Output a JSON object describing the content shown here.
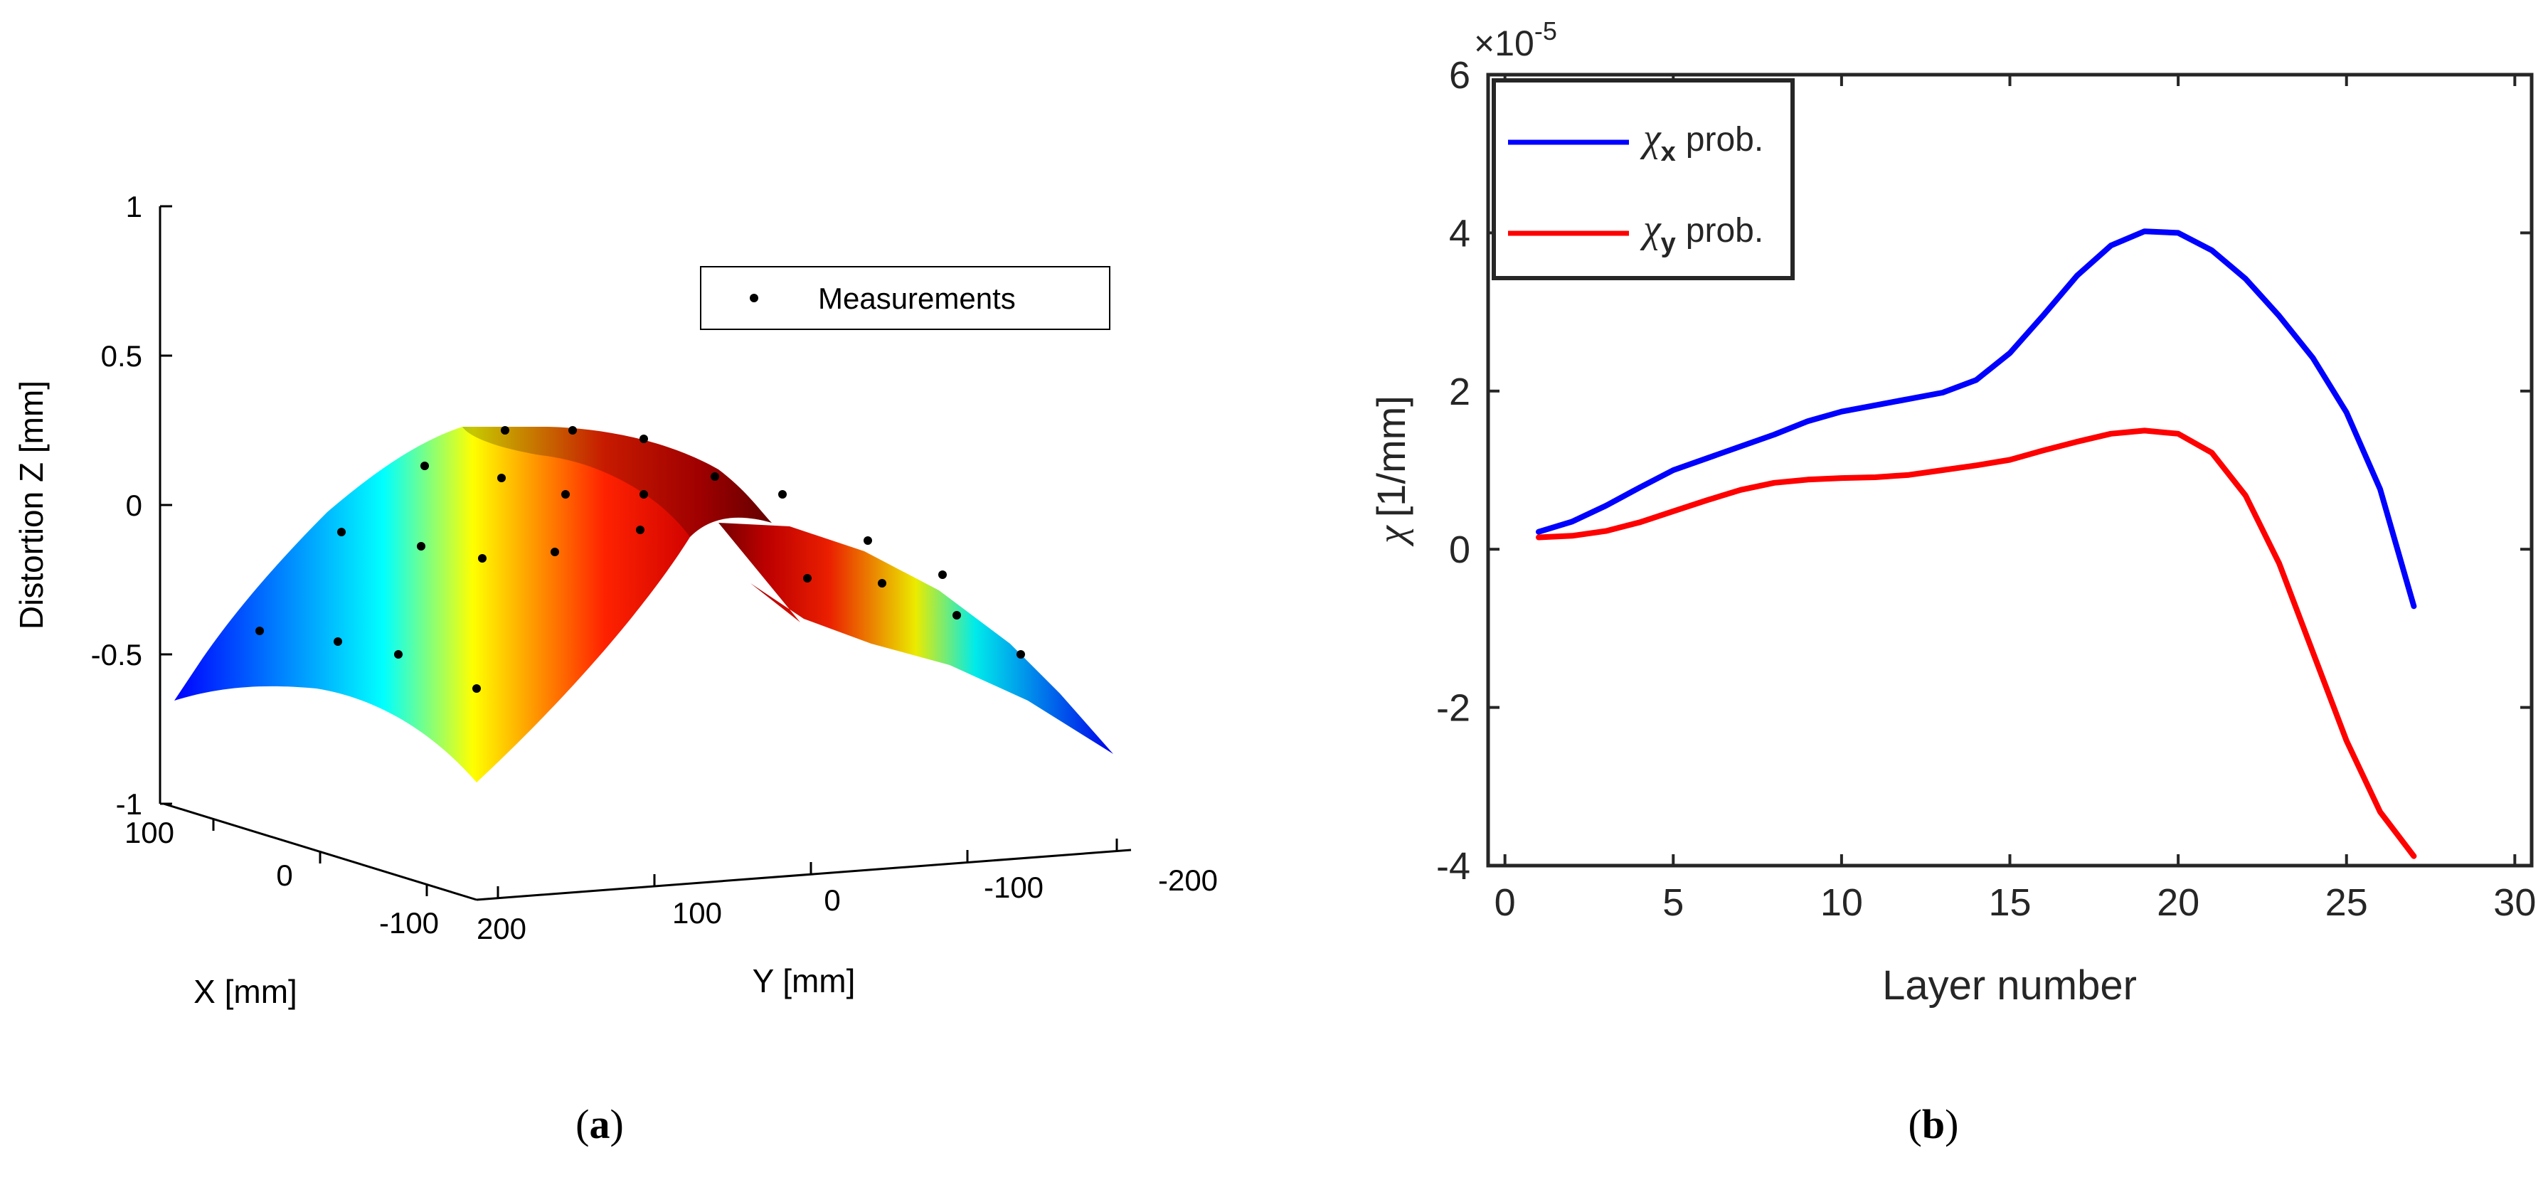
{
  "panel_labels": {
    "a": {
      "open": "(",
      "letter": "a",
      "close": ")"
    },
    "b": {
      "open": "(",
      "letter": "b",
      "close": ")"
    }
  },
  "chart_data": [
    {
      "id": "a",
      "type": "surface3d",
      "title": "",
      "xlabel": "X [mm]",
      "ylabel": "Y [mm]",
      "zlabel": "Distortion Z [mm]",
      "x_ticks": [
        "100",
        "0",
        "-100"
      ],
      "y_ticks": [
        "200",
        "100",
        "0",
        "-100",
        "-200"
      ],
      "z_ticks": [
        "1",
        "0.5",
        "0",
        "-0.5",
        "-1"
      ],
      "xlim": [
        -150,
        150
      ],
      "ylim": [
        -200,
        200
      ],
      "zlim": [
        -1,
        1
      ],
      "legend": {
        "entries": [
          "Measurements"
        ],
        "location": "top-right"
      },
      "surface": {
        "form": "cylindrical bend about the X axis",
        "z_max": 0.25,
        "z_at_y_edges": -0.7,
        "colormap": "jet"
      },
      "colors": {
        "surface_low": "#0000ff",
        "surface_high": "#7f0000",
        "points": "#000000"
      }
    },
    {
      "id": "b",
      "type": "line",
      "title": "",
      "xlabel": "Layer number",
      "ylabel_symbol": "χ",
      "ylabel_unit": "[1/mm]",
      "exponent_label": {
        "prefix": "×10",
        "power": "-5"
      },
      "xlim": [
        -0.5,
        30.5
      ],
      "ylim": [
        -4,
        6
      ],
      "x_ticks": [
        "0",
        "5",
        "10",
        "15",
        "20",
        "25",
        "30"
      ],
      "y_ticks": [
        "6",
        "4",
        "2",
        "0",
        "-2",
        "-4"
      ],
      "legend_location": "top-left",
      "series": [
        {
          "name": "χx prob.",
          "symbol": "χ",
          "subscript": "x",
          "suffix": "prob.",
          "color": "#0000ff",
          "x": [
            1,
            2,
            3,
            4,
            5,
            6,
            7,
            8,
            9,
            10,
            11,
            12,
            13,
            14,
            15,
            16,
            17,
            18,
            19,
            20,
            21,
            22,
            23,
            24,
            25,
            26,
            27
          ],
          "values": [
            0.22,
            0.35,
            0.55,
            0.78,
            1.0,
            1.15,
            1.3,
            1.45,
            1.62,
            1.74,
            1.82,
            1.9,
            1.98,
            2.14,
            2.48,
            2.96,
            3.46,
            3.84,
            4.02,
            4.0,
            3.78,
            3.42,
            2.95,
            2.42,
            1.73,
            0.76,
            -0.72
          ]
        },
        {
          "name": "χy prob.",
          "symbol": "χ",
          "subscript": "y",
          "suffix": "prob.",
          "color": "#ff0000",
          "x": [
            1,
            2,
            3,
            4,
            5,
            6,
            7,
            8,
            9,
            10,
            11,
            12,
            13,
            14,
            15,
            16,
            17,
            18,
            19,
            20,
            21,
            22,
            23,
            24,
            25,
            26,
            27
          ],
          "values": [
            0.15,
            0.17,
            0.23,
            0.34,
            0.48,
            0.62,
            0.75,
            0.84,
            0.88,
            0.9,
            0.91,
            0.94,
            1.0,
            1.06,
            1.13,
            1.25,
            1.36,
            1.46,
            1.5,
            1.46,
            1.22,
            0.68,
            -0.18,
            -1.3,
            -2.42,
            -3.32,
            -3.88
          ]
        }
      ]
    }
  ]
}
